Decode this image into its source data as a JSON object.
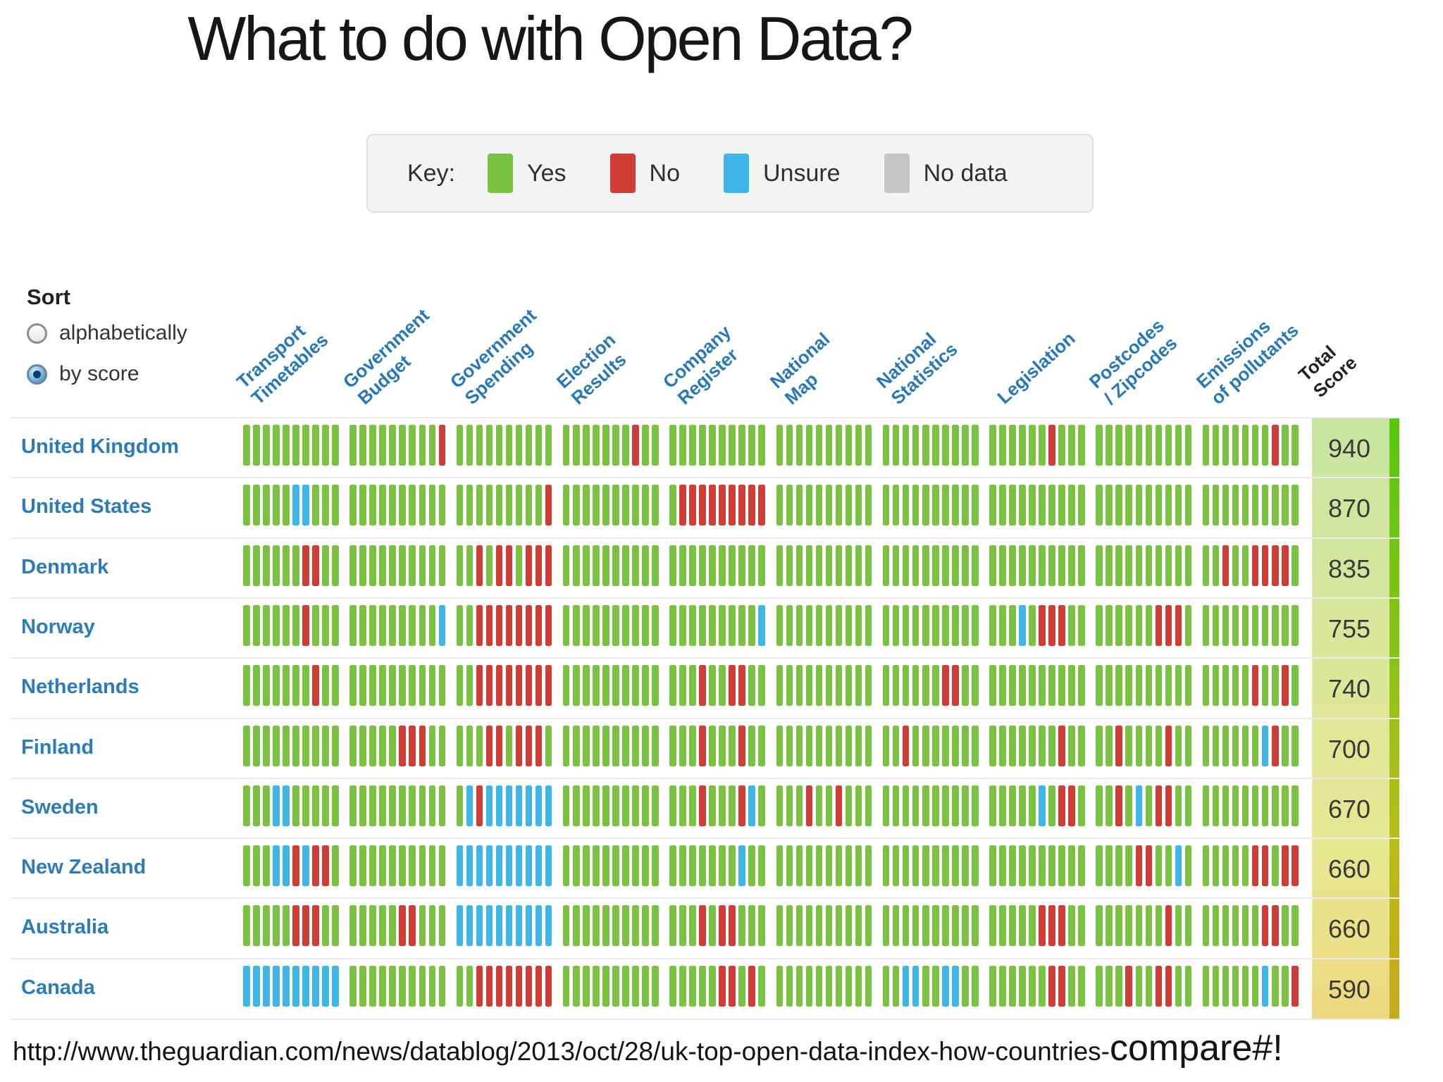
{
  "title": "What to do with Open Data?",
  "key": {
    "label": "Key:",
    "items": [
      {
        "label": "Yes",
        "color": "#7cc242"
      },
      {
        "label": "No",
        "color": "#d03c36"
      },
      {
        "label": "Unsure",
        "color": "#3fb6e8"
      },
      {
        "label": "No data",
        "color": "#c6c6c6"
      }
    ]
  },
  "sort": {
    "label": "Sort",
    "options": [
      {
        "label": "alphabetically",
        "selected": false
      },
      {
        "label": "by score",
        "selected": true
      }
    ]
  },
  "total_header_display": "Total\nScore",
  "source_url": {
    "main": "http://www.theguardian.com/news/datablog/2013/oct/28/uk-top-open-data-index-how-countries-",
    "suffix": "compare#!"
  },
  "cell_colors": {
    "g": "#7cc242",
    "r": "#d03c36",
    "b": "#3fb6e8",
    "n": "#c6c6c6"
  },
  "chart_data": {
    "type": "table",
    "title": "What to do with Open Data?",
    "legend_position": "top",
    "cell_legend": {
      "g": "Yes",
      "r": "No",
      "b": "Unsure",
      "n": "No data"
    },
    "categories": [
      "Transport Timetables",
      "Government Budget",
      "Government Spending",
      "Election Results",
      "Company Register",
      "National Map",
      "National Statistics",
      "Legislation",
      "Postcodes / Zipcodes",
      "Emissions of pollutants"
    ],
    "category_display": [
      "Transport\nTimetables",
      "Government\nBudget",
      "Government\nSpending",
      "Election\nResults",
      "Company\nRegister",
      "National\nMap",
      "National\nStatistics",
      "Legislation",
      "Postcodes\n/ Zipcodes",
      "Emissions\nof pollutants"
    ],
    "total_label": "Total Score",
    "rows": [
      {
        "country": "United Kingdom",
        "total": 940,
        "cells": [
          "gggggggggg",
          "gggggggggr",
          "gggggggggg",
          "gggggggrgg",
          "gggggggggg",
          "gggggggggg",
          "gggggggggg",
          "ggggggrggg",
          "gggggggggg",
          "gggggggrgg"
        ]
      },
      {
        "country": "United States",
        "total": 870,
        "cells": [
          "gggggbbggg",
          "gggggggggg",
          "gggggggggr",
          "gggggggggg",
          "grrrrrrrrr",
          "gggggggggg",
          "gggggggggg",
          "gggggggggg",
          "gggggggggg",
          "gggggggggg"
        ]
      },
      {
        "country": "Denmark",
        "total": 835,
        "cells": [
          "ggggggrrgg",
          "gggggggggg",
          "ggrgrrgrrr",
          "gggggggggg",
          "gggggggggg",
          "gggggggggg",
          "gggggggggg",
          "gggggggggg",
          "gggggggggg",
          "ggrggrrrrg"
        ]
      },
      {
        "country": "Norway",
        "total": 755,
        "cells": [
          "ggggggrggg",
          "gggggggggb",
          "ggrrrrrrrr",
          "gggggggggg",
          "gggggggggb",
          "gggggggggg",
          "gggggggggg",
          "gggbgrrrgg",
          "ggggggrrrg",
          "gggggggggg"
        ]
      },
      {
        "country": "Netherlands",
        "total": 740,
        "cells": [
          "gggggggrgg",
          "gggggggggg",
          "ggrrrrrrrr",
          "gggggggggg",
          "gggrggrrgg",
          "gggggggggg",
          "ggggggrrgg",
          "gggggggggg",
          "gggggggggg",
          "gggggrggrg"
        ]
      },
      {
        "country": "Finland",
        "total": 700,
        "cells": [
          "gggggggggg",
          "gggggrrrgg",
          "gggrrgrrrg",
          "gggggggggg",
          "gggrgggrgg",
          "gggggggggg",
          "ggrggggggg",
          "gggggggrgg",
          "ggrggggrgg",
          "ggggggbrgg"
        ]
      },
      {
        "country": "Sweden",
        "total": 670,
        "cells": [
          "gggbbggggg",
          "gggggggggg",
          "gbrbbbbbbb",
          "gggggggggg",
          "gggrgggrbg",
          "gggrggrggg",
          "gggggggggg",
          "gggggbgrrg",
          "ggrgbgrrgg",
          "gggggggggg"
        ]
      },
      {
        "country": "New Zealand",
        "total": 660,
        "cells": [
          "gggbbrbrrg",
          "gggggggggg",
          "bbbbbbbbbb",
          "gggggggggg",
          "gggggggbgg",
          "gggggggggg",
          "gggggggggg",
          "gggggggggg",
          "ggggrrggbg",
          "gggggrrgrr"
        ]
      },
      {
        "country": "Australia",
        "total": 660,
        "cells": [
          "gggggrrrgg",
          "gggggrrggg",
          "bbbbbbbbbb",
          "gggggggggg",
          "gggrgrrggg",
          "gggggggggg",
          "gggggggggg",
          "gggggrrrgg",
          "gggggggrgg",
          "ggggggrrgg"
        ]
      },
      {
        "country": "Canada",
        "total": 590,
        "cells": [
          "bbbbbbbbbb",
          "gggggggggg",
          "ggrrrrrrrr",
          "gggggggggg",
          "gggggrrgrg",
          "gggggggggg",
          "ggbbggbbgg",
          "ggggggrrgg",
          "gggrggrrgg",
          "ggggggbggr"
        ]
      }
    ]
  }
}
